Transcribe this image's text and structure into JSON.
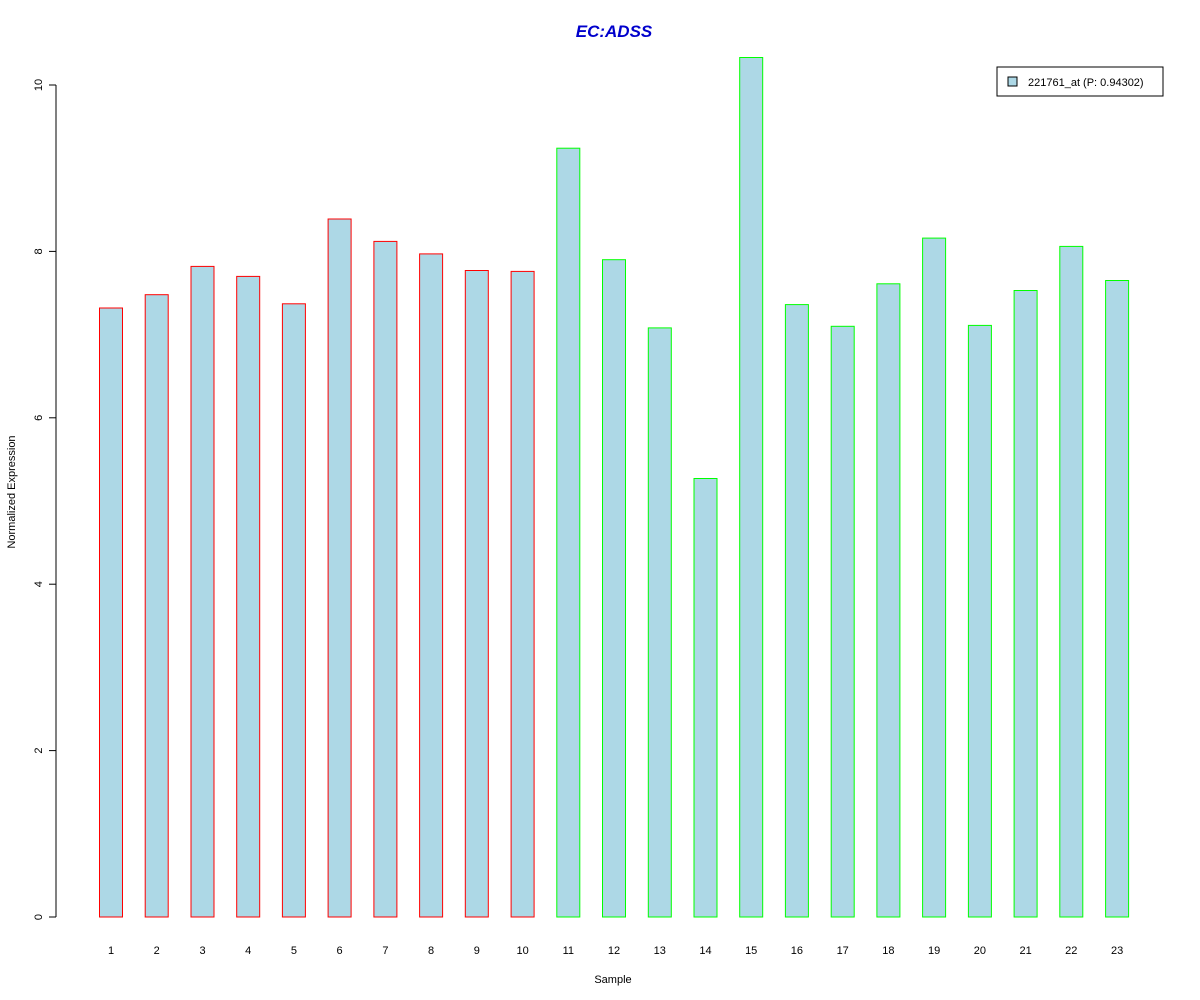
{
  "chart_data": {
    "type": "bar",
    "title": "EC:ADSS",
    "xlabel": "Sample",
    "ylabel": "Normalized Expression",
    "ylim": [
      0,
      10
    ],
    "yticks": [
      0,
      2,
      4,
      6,
      8,
      10
    ],
    "categories": [
      "1",
      "2",
      "3",
      "4",
      "5",
      "6",
      "7",
      "8",
      "9",
      "10",
      "11",
      "12",
      "13",
      "14",
      "15",
      "16",
      "17",
      "18",
      "19",
      "20",
      "21",
      "22",
      "23"
    ],
    "series": [
      {
        "name": "221761_at (P: 0.94302)",
        "values": [
          7.32,
          7.48,
          7.82,
          7.7,
          7.37,
          8.39,
          8.12,
          7.97,
          7.77,
          7.76,
          9.24,
          7.9,
          7.08,
          5.27,
          10.33,
          7.36,
          7.1,
          7.61,
          8.16,
          7.11,
          7.53,
          8.06,
          7.65
        ],
        "fill": "#ADD8E6"
      }
    ],
    "groups": [
      {
        "samples": [
          1,
          2,
          3,
          4,
          5,
          6,
          7,
          8,
          9,
          10
        ],
        "border_color": "#FF0000"
      },
      {
        "samples": [
          11,
          12,
          13,
          14,
          15,
          16,
          17,
          18,
          19,
          20,
          21,
          22,
          23
        ],
        "border_color": "#00FF00"
      }
    ],
    "legend": {
      "position": "top-right",
      "entries": [
        "221761_at (P: 0.94302)"
      ]
    },
    "grid": false,
    "colors": {
      "title": "#0000CC",
      "bar_fill": "#ADD8E6",
      "group1_border": "#FF0000",
      "group2_border": "#00FF00"
    }
  }
}
